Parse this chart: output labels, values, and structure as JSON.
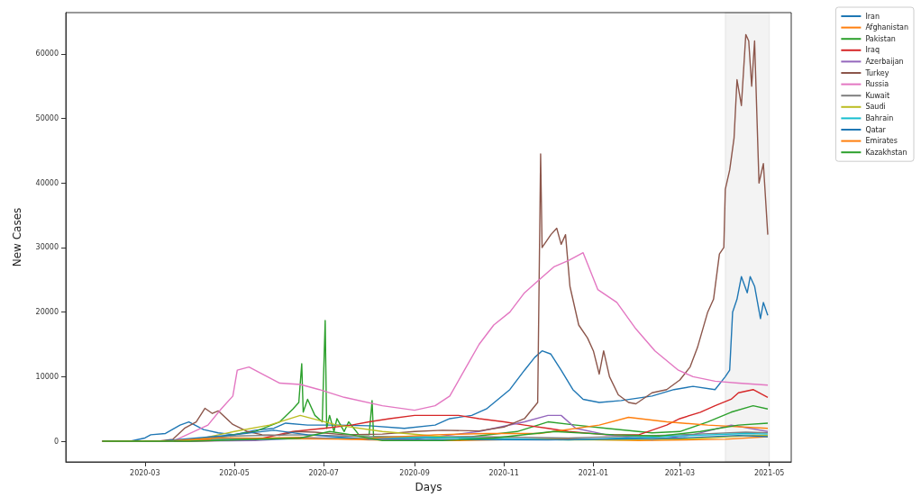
{
  "chart_data": {
    "type": "line",
    "xlabel": "Days",
    "ylabel": "New Cases",
    "xlim": [
      "2020-01-07",
      "2021-05-16"
    ],
    "xticks": [
      "2020-03",
      "2020-05",
      "2020-07",
      "2020-09",
      "2020-11",
      "2021-01",
      "2021-03",
      "2021-05"
    ],
    "ylim": [
      -3200,
      66400
    ],
    "yticks": [
      0,
      10000,
      20000,
      30000,
      40000,
      50000,
      60000
    ],
    "grid": false,
    "legend": "top right",
    "bands": [
      {
        "axis": "x",
        "from": "2021-04-01",
        "to": "2021-05-01",
        "color": "#333333"
      }
    ],
    "series": [
      {
        "name": "Iran",
        "color": "#1f77b4",
        "x": [
          "2020-02-01",
          "2020-02-20",
          "2020-03-01",
          "2020-03-05",
          "2020-03-15",
          "2020-03-25",
          "2020-03-31",
          "2020-04-10",
          "2020-04-20",
          "2020-05-01",
          "2020-05-15",
          "2020-05-28",
          "2020-06-05",
          "2020-06-20",
          "2020-07-10",
          "2020-08-01",
          "2020-08-25",
          "2020-09-15",
          "2020-09-25",
          "2020-10-10",
          "2020-10-20",
          "2020-10-28",
          "2020-11-05",
          "2020-11-15",
          "2020-11-22",
          "2020-11-27",
          "2020-12-03",
          "2020-12-10",
          "2020-12-18",
          "2020-12-25",
          "2021-01-05",
          "2021-01-20",
          "2021-02-10",
          "2021-02-25",
          "2021-03-10",
          "2021-03-25",
          "2021-04-01",
          "2021-04-04",
          "2021-04-06",
          "2021-04-09",
          "2021-04-12",
          "2021-04-16",
          "2021-04-18",
          "2021-04-21",
          "2021-04-25",
          "2021-04-27",
          "2021-04-30"
        ],
        "values": [
          0,
          0,
          500,
          1000,
          1200,
          2500,
          3000,
          1800,
          1300,
          1000,
          1700,
          2000,
          2800,
          2500,
          2500,
          2400,
          2000,
          2500,
          3500,
          4000,
          5000,
          6500,
          8000,
          11000,
          13000,
          14000,
          13500,
          11000,
          8000,
          6500,
          6000,
          6300,
          7000,
          8000,
          8500,
          8000,
          10000,
          11000,
          20000,
          22000,
          25500,
          23000,
          25500,
          24000,
          19000,
          21500,
          19500
        ]
      },
      {
        "name": "Afghanistan",
        "color": "#ff7f0e",
        "x": [
          "2020-02-01",
          "2020-03-20",
          "2020-05-01",
          "2020-06-15",
          "2020-08-01",
          "2020-10-01",
          "2020-12-01",
          "2021-02-01",
          "2021-04-01",
          "2021-04-30"
        ],
        "values": [
          0,
          0,
          400,
          600,
          200,
          100,
          400,
          100,
          300,
          700
        ]
      },
      {
        "name": "Pakistan",
        "color": "#2ca02c",
        "x": [
          "2020-02-01",
          "2020-03-15",
          "2020-04-15",
          "2020-05-15",
          "2020-06-01",
          "2020-06-10",
          "2020-06-14",
          "2020-06-16",
          "2020-06-17",
          "2020-06-20",
          "2020-06-25",
          "2020-06-30",
          "2020-07-02",
          "2020-07-03",
          "2020-07-05",
          "2020-07-08",
          "2020-07-10",
          "2020-07-15",
          "2020-07-18",
          "2020-07-25",
          "2020-08-01",
          "2020-08-03",
          "2020-08-04",
          "2020-08-20",
          "2020-09-15",
          "2020-10-10",
          "2020-11-10",
          "2020-12-01",
          "2020-12-20",
          "2021-01-10",
          "2021-02-10",
          "2021-03-01",
          "2021-03-20",
          "2021-04-05",
          "2021-04-20",
          "2021-04-30"
        ],
        "values": [
          0,
          0,
          500,
          1500,
          3000,
          5000,
          6000,
          12000,
          4500,
          6500,
          4000,
          3000,
          18700,
          2000,
          4000,
          1500,
          3500,
          1500,
          3000,
          1000,
          1000,
          6300,
          700,
          600,
          500,
          700,
          1500,
          3000,
          2500,
          2000,
          1300,
          1500,
          3000,
          4500,
          5500,
          5000
        ]
      },
      {
        "name": "Iraq",
        "color": "#d62728",
        "x": [
          "2020-02-01",
          "2020-04-01",
          "2020-05-15",
          "2020-06-10",
          "2020-07-01",
          "2020-07-20",
          "2020-08-01",
          "2020-08-15",
          "2020-09-01",
          "2020-10-01",
          "2020-10-15",
          "2020-11-01",
          "2020-11-15",
          "2020-12-01",
          "2020-12-15",
          "2021-01-10",
          "2021-02-01",
          "2021-02-20",
          "2021-03-01",
          "2021-03-15",
          "2021-03-25",
          "2021-04-05",
          "2021-04-10",
          "2021-04-20",
          "2021-04-30"
        ],
        "values": [
          0,
          0,
          200,
          1500,
          2000,
          2500,
          3000,
          3500,
          4000,
          4000,
          3500,
          3000,
          2500,
          2000,
          1500,
          1000,
          1000,
          2500,
          3500,
          4500,
          5500,
          6500,
          7500,
          8000,
          6800
        ]
      },
      {
        "name": "Azerbaijan",
        "color": "#9467bd",
        "x": [
          "2020-02-01",
          "2020-05-15",
          "2020-06-15",
          "2020-07-15",
          "2020-09-01",
          "2020-10-15",
          "2020-11-15",
          "2020-12-01",
          "2020-12-10",
          "2020-12-20",
          "2021-01-10",
          "2021-02-10",
          "2021-03-10",
          "2021-04-05",
          "2021-04-30"
        ],
        "values": [
          0,
          100,
          500,
          500,
          300,
          1500,
          3000,
          4000,
          4000,
          2000,
          1000,
          200,
          1000,
          2500,
          1500
        ]
      },
      {
        "name": "Turkey",
        "color": "#8c564b",
        "x": [
          "2020-02-01",
          "2020-03-10",
          "2020-03-20",
          "2020-03-28",
          "2020-04-05",
          "2020-04-11",
          "2020-04-16",
          "2020-04-20",
          "2020-04-30",
          "2020-05-10",
          "2020-05-20",
          "2020-06-01",
          "2020-06-12",
          "2020-06-25",
          "2020-07-15",
          "2020-08-10",
          "2020-09-01",
          "2020-09-20",
          "2020-10-15",
          "2020-11-01",
          "2020-11-15",
          "2020-11-24",
          "2020-11-26",
          "2020-11-27",
          "2020-12-03",
          "2020-12-07",
          "2020-12-10",
          "2020-12-13",
          "2020-12-16",
          "2020-12-22",
          "2020-12-28",
          "2021-01-01",
          "2021-01-05",
          "2021-01-08",
          "2021-01-12",
          "2021-01-18",
          "2021-01-25",
          "2021-01-30",
          "2021-02-10",
          "2021-02-20",
          "2021-03-01",
          "2021-03-08",
          "2021-03-13",
          "2021-03-20",
          "2021-03-24",
          "2021-03-28",
          "2021-03-31",
          "2021-04-01",
          "2021-04-04",
          "2021-04-07",
          "2021-04-09",
          "2021-04-12",
          "2021-04-15",
          "2021-04-17",
          "2021-04-19",
          "2021-04-21",
          "2021-04-24",
          "2021-04-27",
          "2021-04-30"
        ],
        "values": [
          0,
          0,
          300,
          2000,
          3000,
          5100,
          4300,
          4700,
          2600,
          1500,
          1000,
          900,
          1500,
          1400,
          1000,
          1100,
          1500,
          1700,
          1600,
          2200,
          3500,
          6000,
          44500,
          30000,
          32000,
          33000,
          30500,
          32000,
          24000,
          18000,
          16000,
          14000,
          10400,
          14000,
          10000,
          7200,
          6000,
          5800,
          7500,
          8000,
          9500,
          11500,
          14500,
          20000,
          22000,
          29000,
          30000,
          39000,
          42000,
          47000,
          56000,
          52000,
          63000,
          62000,
          55000,
          62000,
          40000,
          43000,
          32000
        ]
      },
      {
        "name": "Russia",
        "color": "#e377c2",
        "x": [
          "2020-02-01",
          "2020-03-20",
          "2020-04-13",
          "2020-04-22",
          "2020-04-30",
          "2020-05-03",
          "2020-05-11",
          "2020-06-01",
          "2020-06-15",
          "2020-06-28",
          "2020-07-15",
          "2020-08-10",
          "2020-09-01",
          "2020-09-15",
          "2020-09-25",
          "2020-10-05",
          "2020-10-15",
          "2020-10-25",
          "2020-11-05",
          "2020-11-15",
          "2020-11-25",
          "2020-12-05",
          "2020-12-15",
          "2020-12-25",
          "2021-01-04",
          "2021-01-17",
          "2021-01-30",
          "2021-02-12",
          "2021-02-28",
          "2021-03-10",
          "2021-03-25",
          "2021-04-10",
          "2021-04-30"
        ],
        "values": [
          0,
          0,
          2500,
          5000,
          7000,
          11000,
          11500,
          9000,
          8800,
          8000,
          6800,
          5500,
          4800,
          5500,
          7000,
          11000,
          15000,
          18000,
          20000,
          23000,
          25000,
          27000,
          28000,
          29200,
          23500,
          21500,
          17400,
          14000,
          11000,
          10000,
          9300,
          9000,
          8700
        ]
      },
      {
        "name": "Kuwait",
        "color": "#7f7f7f",
        "x": [
          "2020-02-01",
          "2020-03-15",
          "2020-05-01",
          "2020-06-15",
          "2020-08-01",
          "2020-10-15",
          "2020-12-15",
          "2021-03-01",
          "2021-04-15",
          "2021-04-30"
        ],
        "values": [
          0,
          0,
          800,
          1000,
          700,
          700,
          500,
          1000,
          1400,
          1300
        ]
      },
      {
        "name": "Saudi",
        "color": "#bcbd22",
        "x": [
          "2020-02-01",
          "2020-04-01",
          "2020-05-01",
          "2020-05-25",
          "2020-06-15",
          "2020-07-10",
          "2020-08-10",
          "2020-10-01",
          "2020-12-15",
          "2021-01-20",
          "2021-03-10",
          "2021-04-20",
          "2021-04-30"
        ],
        "values": [
          0,
          100,
          1500,
          2500,
          4000,
          2500,
          1500,
          500,
          200,
          200,
          400,
          900,
          900
        ]
      },
      {
        "name": "Bahrain",
        "color": "#17becf",
        "x": [
          "2020-04-15",
          "2020-07-01",
          "2020-09-15",
          "2020-12-15",
          "2021-02-15",
          "2021-04-15",
          "2021-04-30"
        ],
        "values": [
          300,
          400,
          600,
          200,
          700,
          1200,
          1100
        ]
      },
      {
        "name": "Qatar",
        "color": "#1f77b4",
        "x": [
          "2020-02-01",
          "2020-03-15",
          "2020-05-01",
          "2020-05-28",
          "2020-06-20",
          "2020-08-01",
          "2020-12-01",
          "2021-03-01",
          "2021-04-10",
          "2021-04-30"
        ],
        "values": [
          0,
          100,
          1000,
          1700,
          1000,
          300,
          200,
          500,
          900,
          700
        ]
      },
      {
        "name": "Emirates",
        "color": "#ff7f0e",
        "x": [
          "2020-02-01",
          "2020-03-20",
          "2020-04-20",
          "2020-06-15",
          "2020-07-20",
          "2020-09-15",
          "2020-10-20",
          "2020-11-25",
          "2021-01-05",
          "2021-01-25",
          "2021-02-20",
          "2021-03-20",
          "2021-04-30"
        ],
        "values": [
          0,
          100,
          500,
          400,
          300,
          1000,
          1200,
          1200,
          2500,
          3700,
          3000,
          2500,
          2000
        ]
      },
      {
        "name": "Kazakhstan",
        "color": "#2ca02c",
        "x": [
          "2020-02-01",
          "2020-04-01",
          "2020-06-15",
          "2020-07-05",
          "2020-07-20",
          "2020-08-10",
          "2020-09-20",
          "2020-10-25",
          "2020-12-05",
          "2021-01-15",
          "2021-02-15",
          "2021-03-15",
          "2021-04-10",
          "2021-04-30"
        ],
        "values": [
          0,
          0,
          500,
          1500,
          1000,
          100,
          100,
          500,
          1500,
          1000,
          800,
          1500,
          2500,
          2800
        ]
      }
    ]
  }
}
